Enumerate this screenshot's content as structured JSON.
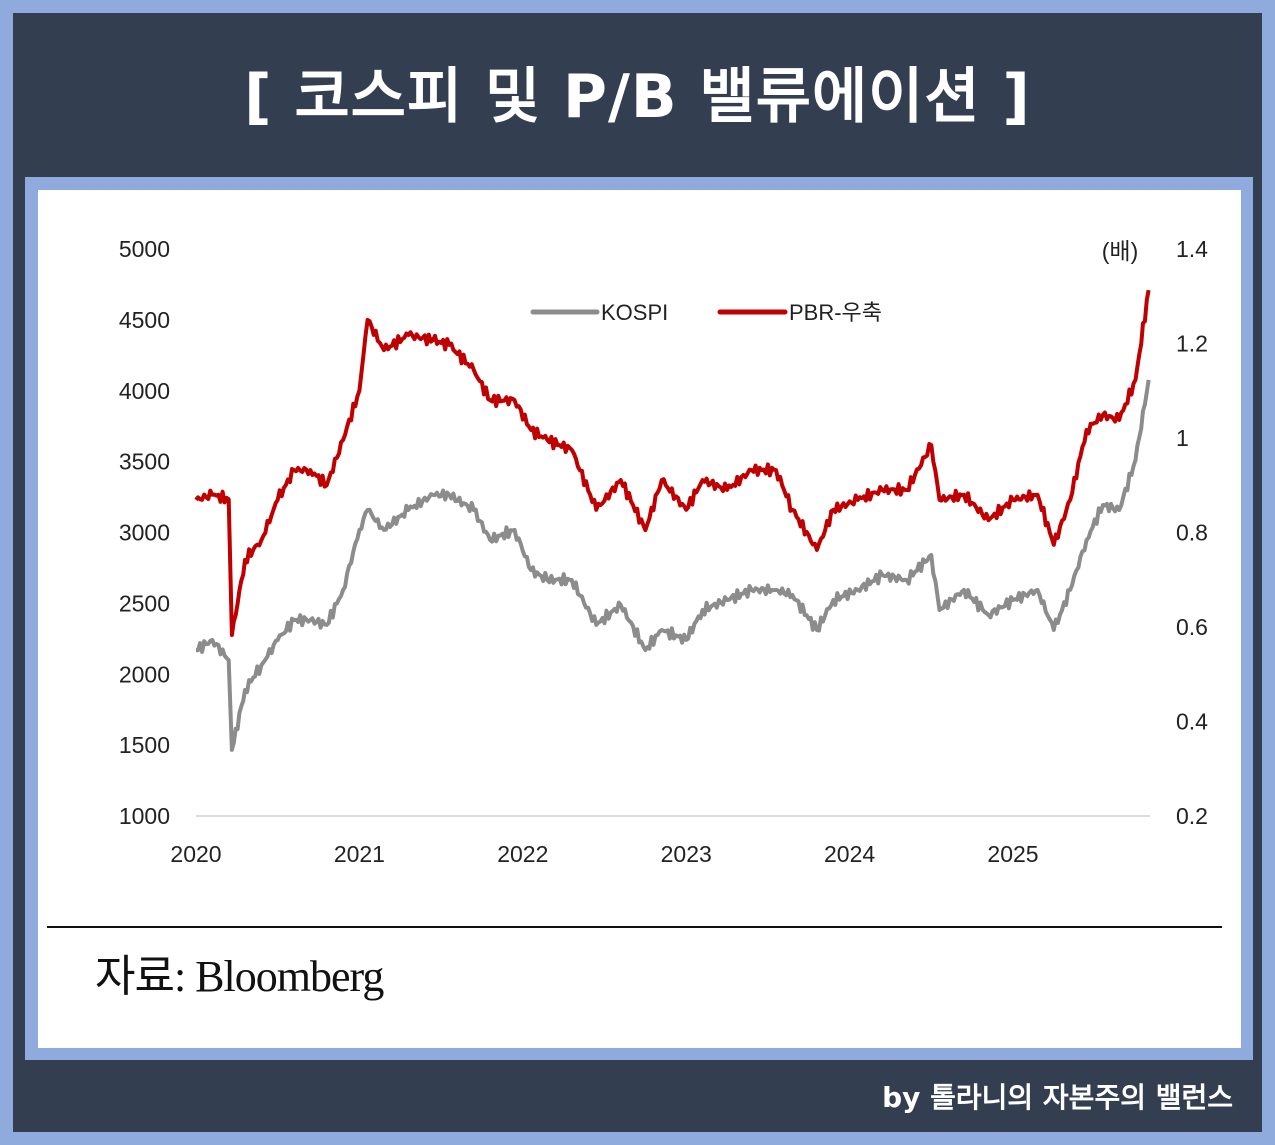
{
  "title": "[ 코스피 및 P/B 밸류에이션 ]",
  "source": "자료: Bloomberg",
  "footer": "by 톨라니의 자본주의 밸런스",
  "colors": {
    "kospi": "#8c8c8c",
    "pbr": "#c00000",
    "navy": "#333f50",
    "frame": "#8faadc"
  },
  "chart_data": {
    "type": "line",
    "title": "코스피 및 P/B 밸류에이션",
    "y_left": {
      "ticks": [
        "5000",
        "4500",
        "4000",
        "3500",
        "3000",
        "2500",
        "2000",
        "1500",
        "1000"
      ],
      "range": [
        1000,
        5000
      ]
    },
    "y_right": {
      "label": "(배)",
      "ticks": [
        "1.4",
        "1.2",
        "1",
        "0.8",
        "0.6",
        "0.4",
        "0.2"
      ],
      "range": [
        0.2,
        1.4
      ]
    },
    "x_axis": {
      "ticks": [
        "2020",
        "2021",
        "2022",
        "2023",
        "2024",
        "2025"
      ],
      "range": [
        2020,
        2025.83
      ]
    },
    "legend": {
      "position": "top-center",
      "entries": [
        "KOSPI",
        "PBR-우축"
      ]
    },
    "x": [
      2020.0,
      2020.1,
      2020.2,
      2020.22,
      2020.3,
      2020.4,
      2020.5,
      2020.6,
      2020.7,
      2020.8,
      2020.9,
      2021.0,
      2021.05,
      2021.15,
      2021.3,
      2021.45,
      2021.55,
      2021.7,
      2021.8,
      2021.95,
      2022.05,
      2022.15,
      2022.3,
      2022.45,
      2022.6,
      2022.75,
      2022.85,
      2023.0,
      2023.1,
      2023.25,
      2023.4,
      2023.55,
      2023.65,
      2023.8,
      2023.9,
      2024.05,
      2024.2,
      2024.35,
      2024.5,
      2024.55,
      2024.7,
      2024.85,
      2025.0,
      2025.15,
      2025.25,
      2025.35,
      2025.45,
      2025.55,
      2025.65,
      2025.75,
      2025.83
    ],
    "series": [
      {
        "name": "KOSPI",
        "axis": "left",
        "values": [
          2171,
          2242,
          2100,
          1466,
          1889,
          2065,
          2242,
          2383,
          2383,
          2348,
          2595,
          3018,
          3159,
          3018,
          3159,
          3265,
          3265,
          3159,
          2947,
          3018,
          2735,
          2665,
          2665,
          2348,
          2489,
          2171,
          2312,
          2242,
          2453,
          2524,
          2595,
          2595,
          2559,
          2312,
          2524,
          2595,
          2700,
          2665,
          2841,
          2453,
          2595,
          2418,
          2524,
          2595,
          2312,
          2595,
          2947,
          3194,
          3159,
          3511,
          4076
        ]
      },
      {
        "name": "PBR-우축",
        "axis": "right",
        "values": [
          0.869,
          0.88,
          0.87,
          0.583,
          0.742,
          0.784,
          0.869,
          0.932,
          0.932,
          0.9,
          0.996,
          1.1,
          1.25,
          1.186,
          1.218,
          1.207,
          1.197,
          1.144,
          1.08,
          1.08,
          1.017,
          0.996,
          0.975,
          0.848,
          0.911,
          0.805,
          0.911,
          0.848,
          0.911,
          0.89,
          0.932,
          0.932,
          0.848,
          0.763,
          0.848,
          0.869,
          0.89,
          0.89,
          0.985,
          0.869,
          0.88,
          0.826,
          0.869,
          0.88,
          0.774,
          0.869,
          1.017,
          1.049,
          1.038,
          1.123,
          1.313
        ]
      }
    ]
  }
}
